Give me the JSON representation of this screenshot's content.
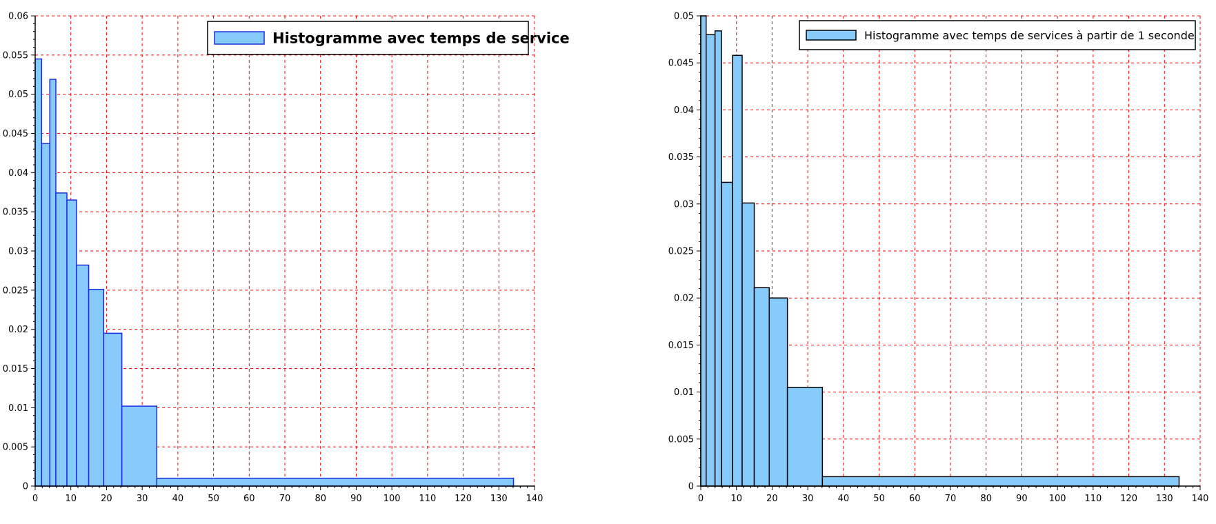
{
  "chart_data": [
    {
      "type": "bar",
      "title": "",
      "xlabel": "",
      "ylabel": "",
      "xlim": [
        0,
        140
      ],
      "ylim": [
        0,
        0.06
      ],
      "grid": true,
      "grid_color": "#ff0000",
      "bar_fill": "#87cbfa",
      "bar_stroke": "#1a2ee0",
      "legend_position": "top-right",
      "x_ticks": [
        "0",
        "10",
        "20",
        "30",
        "40",
        "50",
        "60",
        "70",
        "80",
        "90",
        "100",
        "110",
        "120",
        "130",
        "140"
      ],
      "y_ticks": [
        "0",
        "0.005",
        "0.01",
        "0.015",
        "0.02",
        "0.025",
        "0.03",
        "0.035",
        "0.04",
        "0.045",
        "0.05",
        "0.055",
        "0.06"
      ],
      "series": [
        {
          "name": "Histogramme avec temps de service",
          "bins": [
            {
              "x0": 0,
              "x1": 1.8,
              "value": 0.0545
            },
            {
              "x0": 1.8,
              "x1": 4.1,
              "value": 0.0437
            },
            {
              "x0": 4.1,
              "x1": 5.8,
              "value": 0.0519
            },
            {
              "x0": 5.8,
              "x1": 8.9,
              "value": 0.0374
            },
            {
              "x0": 8.9,
              "x1": 11.6,
              "value": 0.0365
            },
            {
              "x0": 11.6,
              "x1": 15.0,
              "value": 0.0282
            },
            {
              "x0": 15.0,
              "x1": 19.2,
              "value": 0.0251
            },
            {
              "x0": 19.2,
              "x1": 24.3,
              "value": 0.0195
            },
            {
              "x0": 24.3,
              "x1": 34.1,
              "value": 0.0102
            },
            {
              "x0": 34.1,
              "x1": 134.1,
              "value": 0.001
            }
          ]
        }
      ]
    },
    {
      "type": "bar",
      "title": "",
      "xlabel": "",
      "ylabel": "",
      "xlim": [
        0,
        140
      ],
      "ylim": [
        0,
        0.05
      ],
      "grid": true,
      "grid_color": "#ff0000",
      "bar_fill": "#87cbfa",
      "bar_stroke": "#000000",
      "legend_position": "top-right",
      "x_ticks": [
        "0",
        "10",
        "20",
        "30",
        "40",
        "50",
        "60",
        "70",
        "80",
        "90",
        "100",
        "110",
        "120",
        "130",
        "140"
      ],
      "y_ticks": [
        "0",
        "0.005",
        "0.01",
        "0.015",
        "0.02",
        "0.025",
        "0.03",
        "0.035",
        "0.04",
        "0.045",
        "0.05"
      ],
      "series": [
        {
          "name": "Histogramme avec temps de services à partir de 1 seconde",
          "bins": [
            {
              "x0": 0,
              "x1": 1.5,
              "value": 0.05
            },
            {
              "x0": 1.5,
              "x1": 4.0,
              "value": 0.048
            },
            {
              "x0": 4.0,
              "x1": 5.8,
              "value": 0.0484
            },
            {
              "x0": 5.8,
              "x1": 8.9,
              "value": 0.0323
            },
            {
              "x0": 8.9,
              "x1": 11.6,
              "value": 0.0458
            },
            {
              "x0": 11.6,
              "x1": 15.0,
              "value": 0.0301
            },
            {
              "x0": 15.0,
              "x1": 19.2,
              "value": 0.0211
            },
            {
              "x0": 19.2,
              "x1": 24.3,
              "value": 0.02
            },
            {
              "x0": 24.3,
              "x1": 34.1,
              "value": 0.0105
            },
            {
              "x0": 34.1,
              "x1": 134.1,
              "value": 0.001
            }
          ]
        }
      ]
    }
  ]
}
